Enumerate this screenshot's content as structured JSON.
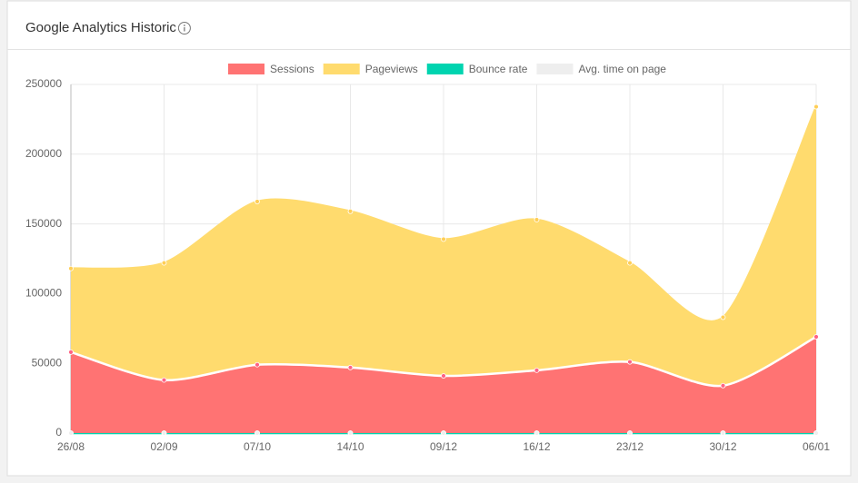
{
  "header": {
    "title": "Google Analytics Historic"
  },
  "chart_data": {
    "type": "area",
    "categories": [
      "26/08",
      "02/09",
      "07/10",
      "14/10",
      "09/12",
      "16/12",
      "23/12",
      "30/12",
      "06/01"
    ],
    "series": [
      {
        "name": "Sessions",
        "color": "#ff6384",
        "fill": "#ff7373",
        "line": "#ffffff",
        "values": [
          58000,
          38000,
          49000,
          47000,
          41000,
          45000,
          51000,
          34000,
          69000
        ]
      },
      {
        "name": "Pageviews",
        "color": "#ffce56",
        "fill": "#ffdb6e",
        "line": "#ffdb6e",
        "values": [
          118000,
          122000,
          166000,
          159000,
          139000,
          153000,
          122000,
          83000,
          234000
        ]
      },
      {
        "name": "Bounce rate",
        "color": "#00d4b0",
        "fill": "#00d4b0",
        "line": "#00d4b0",
        "values": [
          0,
          0,
          0,
          0,
          0,
          0,
          0,
          0,
          0
        ]
      },
      {
        "name": "Avg. time on page",
        "color": "#eeeeee",
        "fill": "#eeeeee",
        "line": "#eeeeee",
        "values": [
          0,
          0,
          0,
          0,
          0,
          0,
          0,
          0,
          0
        ]
      }
    ],
    "ylim": [
      0,
      250000
    ],
    "yticks": [
      0,
      50000,
      100000,
      150000,
      200000,
      250000
    ],
    "grid": true,
    "legend": "top"
  }
}
